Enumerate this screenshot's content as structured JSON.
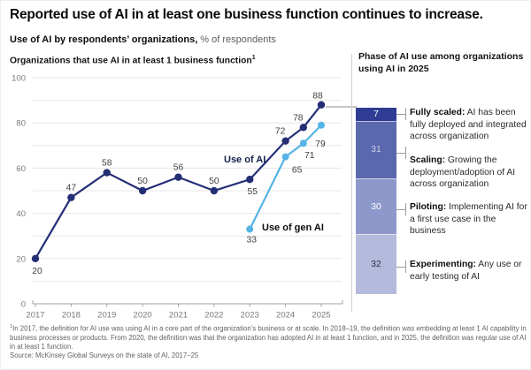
{
  "header": {
    "title": "Reported use of AI in at least one business function continues to increase.",
    "subtitle_bold": "Use of AI by respondents’ organizations,",
    "subtitle_rest": "% of respondents"
  },
  "left_chart": {
    "title": "Organizations that use AI in at least 1 business function",
    "sup": "1"
  },
  "chart_data": {
    "type": "line",
    "title": "Organizations that use AI in at least 1 business function (footnote 1)",
    "xlabel": "",
    "ylabel": "% of respondents",
    "ylim": [
      0,
      100
    ],
    "grid": "horizontal, every 10",
    "y_tick_labels": [
      0,
      20,
      40,
      60,
      80,
      100
    ],
    "x_ticks": [
      2017,
      2018,
      2019,
      2020,
      2021,
      2022,
      2023,
      2024,
      2025
    ],
    "legend_position": "inline annotations on lines",
    "series": [
      {
        "name": "Use of AI",
        "color": "#242e75",
        "points": [
          {
            "x": 2017,
            "y": 20
          },
          {
            "x": 2018,
            "y": 47
          },
          {
            "x": 2019,
            "y": 58
          },
          {
            "x": 2020,
            "y": 50
          },
          {
            "x": 2021,
            "y": 56
          },
          {
            "x": 2022,
            "y": 50
          },
          {
            "x": 2023,
            "y": 55
          },
          {
            "x": 2024,
            "y": 72
          },
          {
            "x": 2024.5,
            "y": 78
          },
          {
            "x": 2025,
            "y": 88
          }
        ]
      },
      {
        "name": "Use of gen AI",
        "color": "#56b4e5",
        "points": [
          {
            "x": 2023,
            "y": 33
          },
          {
            "x": 2024,
            "y": 65
          },
          {
            "x": 2024.5,
            "y": 71
          },
          {
            "x": 2025,
            "y": 79
          }
        ]
      }
    ]
  },
  "right_panel": {
    "title": "Phase of AI use among organizations using AI in 2025",
    "bar_total": 100,
    "segments": [
      {
        "value": 7,
        "color": "#2e3c94",
        "value_color": "#ffffff",
        "term": "Fully scaled:",
        "desc": "AI has been fully deployed and integrated across organization"
      },
      {
        "value": 31,
        "color": "#5a68ae",
        "value_color": "#ccd2ea",
        "term": "Scaling:",
        "desc": "Growing the deployment/adoption of AI across organization"
      },
      {
        "value": 30,
        "color": "#8e99cb",
        "value_color": "#ffffff",
        "term": "Piloting:",
        "desc": "Implementing AI for a first use case in the business"
      },
      {
        "value": 32,
        "color": "#b4badc",
        "value_color": "#30304d",
        "term": "Experimenting:",
        "desc": "Any use or early testing of AI"
      }
    ]
  },
  "footnotes": {
    "sup": "1",
    "note": "In 2017, the definition for AI use was using AI in a core part of the organization’s business or at scale. In 2018–19, the definition was embedding at least 1 AI capability in business processes or products. From 2020, the definition was that the organization has adopted AI in at least 1 function, and in 2025, the definition was regular use of AI in at least 1 function.",
    "source": "Source: McKinsey Global Surveys on the state of AI, 2017–25"
  }
}
